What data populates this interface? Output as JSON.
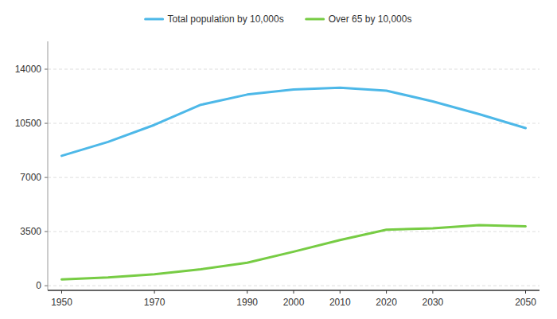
{
  "chart_data": {
    "type": "line",
    "x": [
      1950,
      1960,
      1970,
      1980,
      1990,
      2000,
      2010,
      2020,
      2030,
      2040,
      2050
    ],
    "series": [
      {
        "name": "Total population by 10,000s",
        "color": "#4db8e8",
        "values": [
          8400,
          9300,
          10400,
          11700,
          12361,
          12693,
          12806,
          12615,
          11913,
          11092,
          10192
        ]
      },
      {
        "name": "Over 65 by 10,000s",
        "color": "#77cc44",
        "values": [
          410,
          540,
          740,
          1065,
          1490,
          2200,
          2950,
          3619,
          3716,
          3921,
          3840
        ]
      }
    ],
    "xlim": [
      1947,
      2053
    ],
    "xticks": [
      1950,
      1970,
      1990,
      2000,
      2010,
      2020,
      2030,
      2050
    ],
    "ylim": [
      -300,
      15800
    ],
    "yticks": [
      0,
      3500,
      7000,
      10500,
      14000
    ],
    "grid": true,
    "legend": "top"
  }
}
